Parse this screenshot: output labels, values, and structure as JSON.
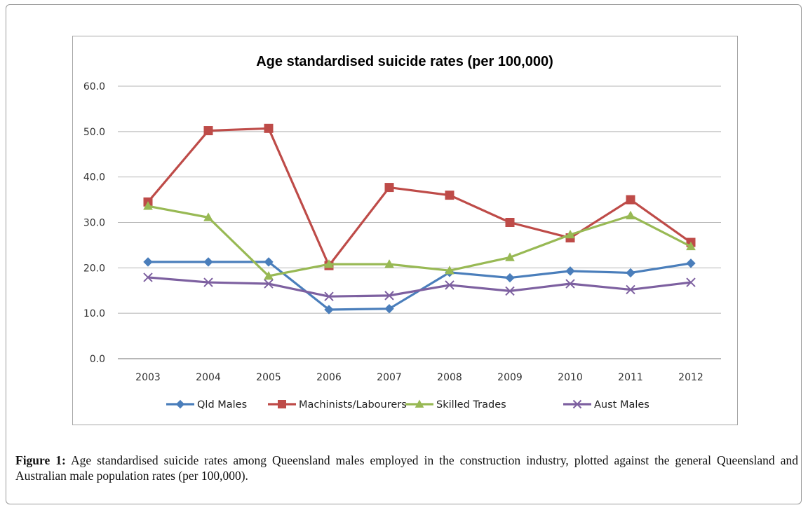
{
  "chart_data": {
    "type": "line",
    "title": "Age standardised suicide rates (per 100,000)",
    "xlabel": "",
    "ylabel": "",
    "ylim": [
      0,
      60
    ],
    "yticks": [
      "0.0",
      "10.0",
      "20.0",
      "30.0",
      "40.0",
      "50.0",
      "60.0"
    ],
    "grid": true,
    "legend_position": "bottom",
    "categories": [
      "2003",
      "2004",
      "2005",
      "2006",
      "2007",
      "2008",
      "2009",
      "2010",
      "2011",
      "2012"
    ],
    "series": [
      {
        "name": "Qld Males",
        "color": "#4a7ebb",
        "marker": "diamond",
        "values": [
          21.3,
          21.3,
          21.3,
          10.8,
          11.0,
          19.0,
          17.8,
          19.3,
          18.9,
          21.0
        ]
      },
      {
        "name": "Machinists/Labourers",
        "color": "#be4b48",
        "marker": "square",
        "values": [
          34.5,
          50.2,
          50.7,
          20.5,
          37.7,
          36.0,
          30.0,
          26.6,
          35.0,
          25.6
        ]
      },
      {
        "name": "Skilled Trades",
        "color": "#98b954",
        "marker": "triangle",
        "values": [
          33.6,
          31.1,
          18.2,
          20.8,
          20.8,
          19.4,
          22.3,
          27.3,
          31.5,
          24.7
        ]
      },
      {
        "name": "Aust Males",
        "color": "#7d60a0",
        "marker": "x",
        "values": [
          17.9,
          16.8,
          16.5,
          13.7,
          13.9,
          16.2,
          14.9,
          16.5,
          15.2,
          16.8
        ]
      }
    ]
  },
  "caption": {
    "label": "Figure 1:",
    "text": " Age standardised suicide rates among Queensland males employed in the construction industry, plotted against the general Queensland and Australian male population rates (per 100,000)."
  }
}
